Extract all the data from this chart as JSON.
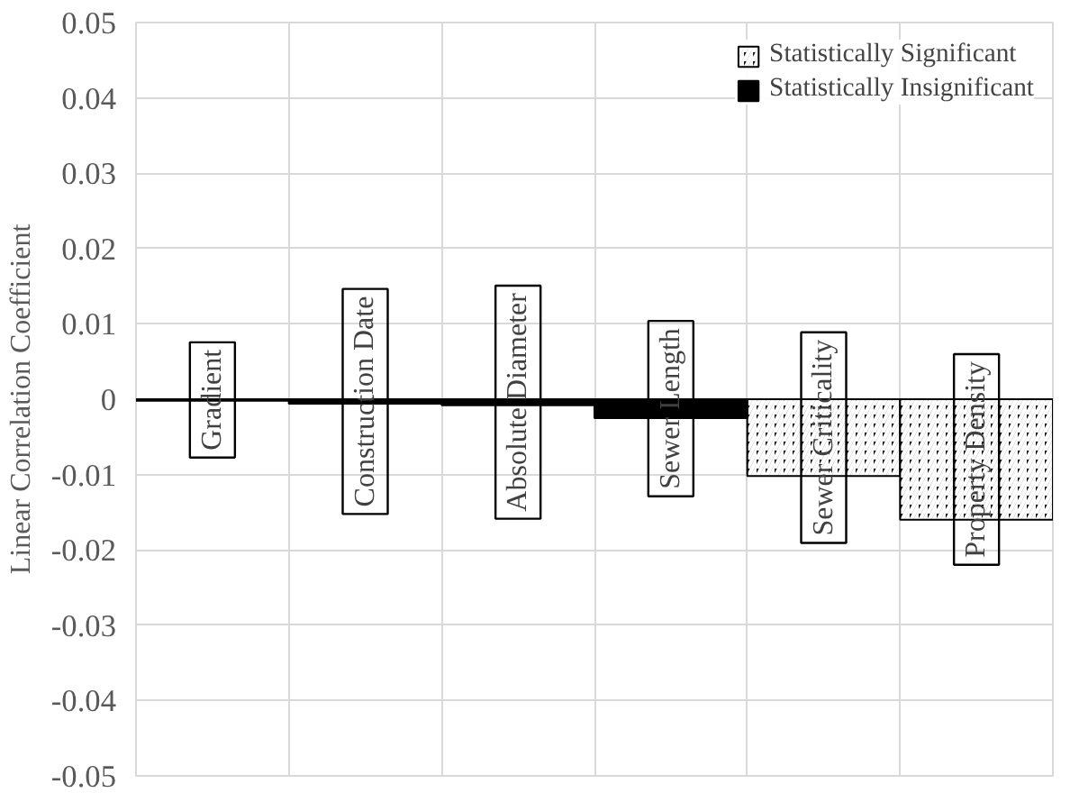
{
  "chart_data": {
    "type": "bar",
    "stacked": true,
    "ylabel": "Linear Correlation Coefficient",
    "categories": [
      "Gradient",
      "Construction Date",
      "Absolute Diameter",
      "Sewer Length",
      "Sewer Criticality",
      "Property Density"
    ],
    "series": [
      {
        "name": "Statistically Significant",
        "color": "#000000",
        "values": [
          null,
          null,
          null,
          null,
          -0.0102,
          -0.016
        ]
      },
      {
        "name": "Statistically Insignificant",
        "color": "#000000",
        "values": [
          -0.0002,
          -0.0006,
          -0.0008,
          -0.0025,
          null,
          null
        ]
      }
    ],
    "ylim": [
      -0.05,
      0.05
    ],
    "yticks": [
      -0.05,
      -0.04,
      -0.03,
      -0.02,
      -0.01,
      0,
      0.01,
      0.02,
      0.03,
      0.04,
      0.05
    ],
    "grid": true,
    "legend": "top right",
    "tick_labels": "y"
  }
}
